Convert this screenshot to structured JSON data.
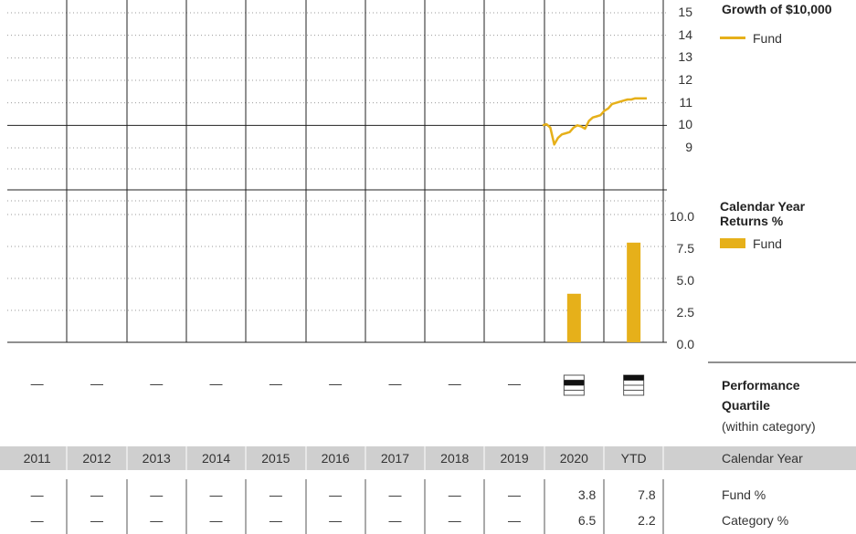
{
  "colors": {
    "fund": "#E6B01A",
    "grid_dotted": "#999999",
    "vline": "#222222",
    "footer_band": "#CFCFCF"
  },
  "growth": {
    "title": "Growth of $10,000",
    "legend_label": "Fund",
    "y_ticks": [
      "15",
      "14",
      "13",
      "12",
      "11",
      "10",
      "9"
    ]
  },
  "returns": {
    "title_line1": "Calendar Year",
    "title_line2": "Returns %",
    "legend_label": "Fund",
    "y_ticks": [
      "10.0",
      "7.5",
      "5.0",
      "2.5",
      "0.0"
    ]
  },
  "quartile": {
    "title_line1": "Performance",
    "title_line2": "Quartile",
    "subtitle": "(within category)",
    "placeholder": "—",
    "values": [
      null,
      null,
      null,
      null,
      null,
      null,
      null,
      null,
      null,
      2,
      1
    ]
  },
  "years": {
    "labels": [
      "2011",
      "2012",
      "2013",
      "2014",
      "2015",
      "2016",
      "2017",
      "2018",
      "2019",
      "2020",
      "YTD"
    ],
    "row_label": "Calendar Year"
  },
  "fund_row": {
    "label": "Fund %",
    "values": [
      "—",
      "—",
      "—",
      "—",
      "—",
      "—",
      "—",
      "—",
      "—",
      "3.8",
      "7.8"
    ]
  },
  "category_row": {
    "label": "Category %",
    "values": [
      "—",
      "—",
      "—",
      "—",
      "—",
      "—",
      "—",
      "—",
      "—",
      "6.5",
      "2.2"
    ]
  },
  "chart_data": [
    {
      "type": "line",
      "title": "Growth of $10,000",
      "ylim": [
        9,
        15
      ],
      "y_ticks": [
        9,
        10,
        11,
        12,
        13,
        14,
        15
      ],
      "legend_position": "top-right",
      "grid": true,
      "series": [
        {
          "name": "Fund",
          "x": [
            2020.0,
            2020.1,
            2020.2,
            2020.3,
            2020.4,
            2020.5,
            2020.6,
            2020.7,
            2020.8,
            2020.9,
            2021.0,
            2021.1,
            2021.2,
            2021.3,
            2021.4,
            2021.5,
            2021.6,
            2021.7,
            2021.8,
            2021.9,
            2022.0,
            2022.1,
            2022.2,
            2022.3,
            2022.4,
            2022.5,
            2022.6,
            2022.7
          ],
          "y": [
            10.0,
            10.05,
            9.9,
            9.15,
            9.45,
            9.6,
            9.65,
            9.7,
            9.9,
            10.0,
            9.95,
            9.85,
            10.2,
            10.35,
            10.4,
            10.45,
            10.65,
            10.75,
            10.95,
            11.0,
            11.05,
            11.1,
            11.15,
            11.15,
            11.2,
            11.2,
            11.2,
            11.2
          ]
        }
      ]
    },
    {
      "type": "bar",
      "title": "Calendar Year Returns %",
      "categories": [
        "2011",
        "2012",
        "2013",
        "2014",
        "2015",
        "2016",
        "2017",
        "2018",
        "2019",
        "2020",
        "YTD"
      ],
      "ylim": [
        0,
        10
      ],
      "y_ticks": [
        0,
        2.5,
        5,
        7.5,
        10
      ],
      "legend_position": "top-right",
      "grid": true,
      "series": [
        {
          "name": "Fund",
          "values": [
            null,
            null,
            null,
            null,
            null,
            null,
            null,
            null,
            null,
            3.8,
            7.8
          ]
        }
      ]
    }
  ]
}
